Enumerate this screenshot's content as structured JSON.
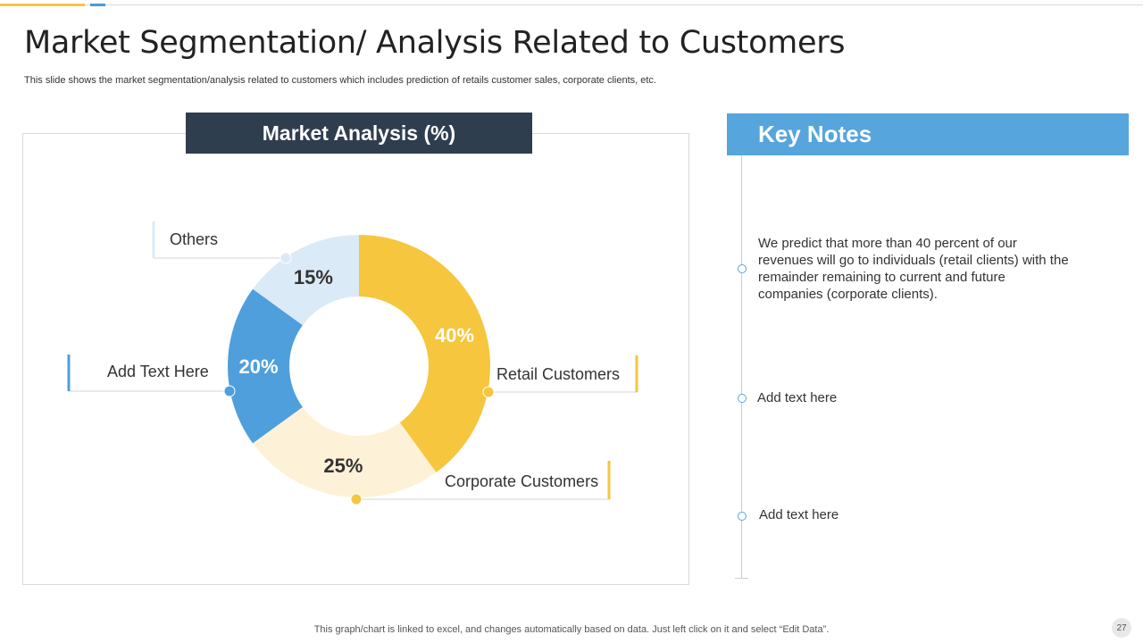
{
  "slide": {
    "title": "Market Segmentation/ Analysis Related to Customers",
    "subtitle": "This slide shows the market segmentation/analysis related to customers which includes prediction of retails customer sales, corporate clients, etc.",
    "footer": "This graph/chart is linked to excel,  and changes automatically based on data. Just left click on it and select “Edit Data”.",
    "page_number": "27"
  },
  "chart_data": {
    "type": "pie",
    "title": "Market Analysis (%)",
    "categories": [
      "Retail Customers",
      "Corporate Customers",
      "Add Text Here",
      "Others"
    ],
    "values": [
      40,
      25,
      20,
      15
    ],
    "value_labels": [
      "40%",
      "25%",
      "20%",
      "15%"
    ],
    "colors": [
      "#f5c63e",
      "#fdf2d8",
      "#4f9fdc",
      "#dbeaf7"
    ],
    "label_colors": [
      "#ffffff",
      "#333333",
      "#ffffff",
      "#333333"
    ],
    "donut": true
  },
  "key_notes": {
    "title": "Key Notes",
    "items": [
      "We predict that more than 40 percent of our revenues will go to individuals (retail clients) with the remainder remaining to current and future companies (corporate clients).",
      "Add text here",
      "Add text here"
    ]
  }
}
